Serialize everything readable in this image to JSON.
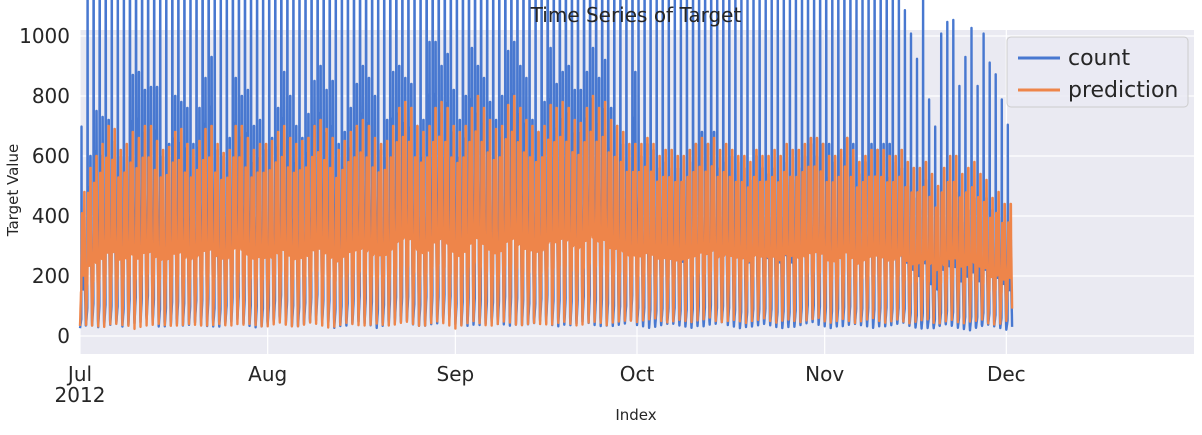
{
  "chart_data": {
    "type": "line",
    "title": "Time Series of Target",
    "xlabel": "Index",
    "ylabel": "Target Value",
    "x_range": [
      "2012-07-01",
      "2012-12-31"
    ],
    "ylim": [
      -60,
      1020
    ],
    "y_ticks": [
      0,
      200,
      400,
      600,
      800,
      1000
    ],
    "x_ticks": [
      {
        "label": "Jul",
        "date": "2012-07-01"
      },
      {
        "label": "Aug",
        "date": "2012-08-01"
      },
      {
        "label": "Sep",
        "date": "2012-09-01"
      },
      {
        "label": "Oct",
        "date": "2012-10-01"
      },
      {
        "label": "Nov",
        "date": "2012-11-01"
      },
      {
        "label": "Dec",
        "date": "2012-12-01"
      }
    ],
    "x_year_label": "2012",
    "grid": true,
    "legend_position": "top-right",
    "series": [
      {
        "name": "count",
        "color": "#4878d0",
        "daily_peaks": [
          320,
          600,
          750,
          730,
          720,
          650,
          600,
          600,
          870,
          880,
          820,
          830,
          830,
          600,
          640,
          800,
          780,
          760,
          640,
          760,
          860,
          930,
          620,
          600,
          660,
          860,
          800,
          820,
          700,
          720,
          620,
          660,
          760,
          880,
          800,
          700,
          660,
          740,
          850,
          900,
          820,
          850,
          640,
          680,
          760,
          840,
          900,
          860,
          800,
          620,
          720,
          880,
          900,
          860,
          840,
          700,
          720,
          980,
          980,
          900,
          940,
          820,
          720,
          800,
          960,
          900,
          860,
          780,
          720,
          800,
          950,
          980,
          900,
          860,
          720,
          680,
          780,
          960,
          840,
          880,
          900,
          820,
          820,
          880,
          960,
          860,
          920,
          760,
          700,
          640,
          620,
          880,
          600,
          640,
          620,
          560,
          580,
          560,
          560,
          520,
          580,
          640,
          680,
          640,
          680,
          560,
          580,
          600,
          580,
          560,
          520,
          600,
          560,
          540,
          560,
          520,
          580,
          520,
          560,
          600,
          640,
          600,
          640,
          640,
          580,
          620,
          660,
          640,
          540,
          580,
          640,
          620,
          640,
          640,
          580,
          560,
          500,
          460,
          420,
          520,
          360,
          320,
          460,
          480,
          480,
          380,
          420,
          460,
          380,
          460,
          420,
          400,
          360,
          320
        ],
        "daily_troughs": [
          20,
          25,
          20,
          15,
          20,
          25,
          30,
          20,
          20,
          25,
          30,
          40,
          25,
          20,
          20,
          20,
          25,
          20,
          25,
          30,
          20,
          15,
          20,
          20,
          25,
          30,
          40,
          25,
          20,
          15,
          20,
          25,
          30,
          35,
          25,
          20,
          20,
          25,
          30,
          35,
          25,
          20,
          15,
          20,
          20,
          25,
          30,
          25,
          20,
          15,
          20,
          20,
          25,
          30,
          35,
          25,
          20,
          15,
          20,
          25,
          30,
          40,
          25,
          20,
          15,
          20,
          20,
          25,
          30,
          25,
          20,
          15,
          20,
          20,
          25,
          30,
          35,
          25,
          20,
          15,
          20,
          20,
          25,
          30,
          25,
          20,
          15,
          20,
          20,
          25,
          30,
          35,
          25,
          20,
          15,
          20,
          25,
          30,
          30,
          25,
          20,
          15,
          20,
          20,
          25,
          30,
          35,
          25,
          20,
          15,
          20,
          20,
          25,
          30,
          25,
          20,
          15,
          20,
          20,
          25,
          30,
          35,
          25,
          20,
          15,
          20,
          20,
          25,
          30,
          25,
          20,
          15,
          20,
          20,
          25,
          30,
          35,
          25,
          20,
          15,
          20,
          20,
          25,
          30,
          25,
          20,
          15,
          10,
          20,
          25,
          30,
          25,
          20,
          15
        ]
      },
      {
        "name": "prediction",
        "color": "#ee854a",
        "daily_peaks": [
          480,
          560,
          600,
          640,
          700,
          690,
          620,
          640,
          680,
          660,
          700,
          700,
          650,
          620,
          630,
          680,
          690,
          640,
          620,
          650,
          690,
          700,
          640,
          610,
          620,
          700,
          700,
          660,
          620,
          640,
          640,
          650,
          680,
          700,
          660,
          640,
          650,
          660,
          700,
          720,
          690,
          660,
          620,
          650,
          680,
          700,
          720,
          700,
          660,
          640,
          650,
          700,
          760,
          780,
          760,
          700,
          680,
          700,
          760,
          780,
          760,
          700,
          680,
          700,
          760,
          800,
          760,
          720,
          690,
          700,
          770,
          800,
          760,
          720,
          700,
          680,
          700,
          770,
          760,
          780,
          760,
          720,
          710,
          760,
          800,
          760,
          780,
          720,
          700,
          680,
          640,
          640,
          640,
          660,
          640,
          600,
          620,
          620,
          600,
          600,
          620,
          640,
          660,
          640,
          660,
          620,
          640,
          620,
          600,
          600,
          580,
          620,
          600,
          600,
          620,
          600,
          640,
          620,
          620,
          640,
          660,
          660,
          640,
          600,
          600,
          620,
          660,
          620,
          580,
          600,
          620,
          620,
          620,
          600,
          600,
          620,
          580,
          560,
          560,
          580,
          540,
          500,
          560,
          600,
          600,
          540,
          560,
          580,
          540,
          520,
          460,
          480,
          440,
          440
        ],
        "daily_troughs": [
          10,
          10,
          5,
          0,
          -5,
          5,
          10,
          5,
          0,
          -10,
          -5,
          0,
          5,
          10,
          5,
          0,
          0,
          5,
          10,
          5,
          0,
          0,
          5,
          10,
          5,
          0,
          5,
          5,
          10,
          5,
          0,
          0,
          5,
          10,
          5,
          0,
          0,
          5,
          10,
          5,
          0,
          -5,
          0,
          5,
          10,
          5,
          0,
          0,
          5,
          10,
          5,
          0,
          0,
          5,
          10,
          5,
          0,
          0,
          5,
          10,
          5,
          0,
          -10,
          0,
          5,
          10,
          5,
          0,
          0,
          5,
          10,
          5,
          0,
          0,
          5,
          10,
          5,
          0,
          0,
          5,
          10,
          5,
          0,
          0,
          5,
          10,
          5,
          0,
          10,
          15,
          20,
          20,
          15,
          20,
          25,
          30,
          20,
          15,
          20,
          25,
          20,
          15,
          20,
          25,
          30,
          20,
          15,
          20,
          25,
          20,
          15,
          20,
          25,
          30,
          20,
          15,
          20,
          25,
          20,
          15,
          20,
          25,
          30,
          20,
          15,
          20,
          25,
          20,
          15,
          20,
          25,
          30,
          20,
          15,
          20,
          25,
          20,
          15,
          20,
          25,
          30,
          20,
          15,
          20,
          25,
          20,
          15,
          20,
          25,
          30,
          20,
          15,
          20,
          30,
          40
        ]
      }
    ]
  }
}
